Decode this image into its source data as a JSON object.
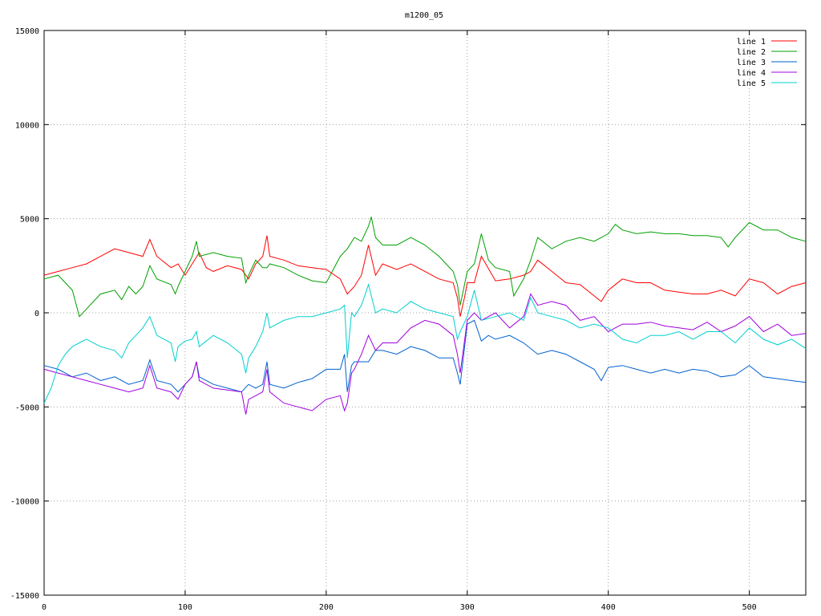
{
  "chart_data": {
    "type": "line",
    "title": "m1200_05",
    "xlabel": "",
    "ylabel": "",
    "xlim": [
      0,
      540
    ],
    "ylim": [
      -15000,
      15000
    ],
    "x_ticks": [
      0,
      100,
      200,
      300,
      400,
      500
    ],
    "y_ticks": [
      -15000,
      -10000,
      -5000,
      0,
      5000,
      10000,
      15000
    ],
    "grid": true,
    "legend_position": "top-right",
    "series": [
      {
        "name": "line 1",
        "color": "#ff0000",
        "x": [
          0,
          10,
          20,
          30,
          40,
          50,
          60,
          70,
          75,
          80,
          90,
          95,
          100,
          105,
          110,
          115,
          120,
          130,
          140,
          145,
          150,
          155,
          158,
          160,
          170,
          180,
          190,
          200,
          210,
          215,
          220,
          225,
          230,
          235,
          240,
          250,
          260,
          270,
          280,
          290,
          293,
          295,
          298,
          300,
          305,
          310,
          320,
          330,
          340,
          345,
          350,
          360,
          370,
          380,
          390,
          395,
          400,
          410,
          420,
          430,
          440,
          450,
          460,
          470,
          480,
          490,
          500,
          510,
          520,
          530,
          540
        ],
        "values": [
          2000,
          2200,
          2400,
          2600,
          3000,
          3400,
          3200,
          3000,
          3900,
          3000,
          2400,
          2600,
          2000,
          2600,
          3200,
          2400,
          2200,
          2500,
          2300,
          1800,
          2600,
          3000,
          4100,
          3000,
          2800,
          2500,
          2400,
          2300,
          1800,
          1000,
          1400,
          2000,
          3600,
          2000,
          2600,
          2300,
          2600,
          2200,
          1800,
          1600,
          800,
          -200,
          800,
          1600,
          1600,
          3000,
          1700,
          1800,
          2000,
          2200,
          2800,
          2200,
          1600,
          1500,
          900,
          600,
          1200,
          1800,
          1600,
          1600,
          1200,
          1100,
          1000,
          1000,
          1200,
          900,
          1800,
          1600,
          1000,
          1400,
          1600
        ]
      },
      {
        "name": "line 2",
        "color": "#00a000",
        "x": [
          0,
          10,
          20,
          25,
          30,
          40,
          50,
          55,
          60,
          65,
          70,
          75,
          80,
          90,
          93,
          95,
          100,
          105,
          108,
          110,
          120,
          130,
          140,
          143,
          145,
          150,
          155,
          158,
          160,
          170,
          180,
          190,
          200,
          210,
          215,
          220,
          225,
          230,
          232,
          235,
          240,
          250,
          260,
          270,
          280,
          290,
          293,
          295,
          300,
          305,
          310,
          315,
          320,
          330,
          333,
          340,
          345,
          350,
          360,
          370,
          380,
          390,
          400,
          405,
          410,
          420,
          430,
          440,
          450,
          460,
          470,
          480,
          485,
          490,
          500,
          510,
          520,
          530,
          540
        ],
        "values": [
          1800,
          2000,
          1200,
          -200,
          200,
          1000,
          1200,
          700,
          1400,
          1000,
          1400,
          2500,
          1800,
          1500,
          1000,
          1400,
          2200,
          3000,
          3800,
          3000,
          3200,
          3000,
          2900,
          1600,
          2000,
          2800,
          2400,
          2400,
          2600,
          2400,
          2000,
          1700,
          1600,
          3000,
          3400,
          4000,
          3800,
          4600,
          5100,
          4000,
          3600,
          3600,
          4000,
          3600,
          3000,
          2200,
          1500,
          400,
          2200,
          2600,
          4200,
          2800,
          2400,
          2200,
          900,
          1800,
          2800,
          4000,
          3400,
          3800,
          4000,
          3800,
          4200,
          4700,
          4400,
          4200,
          4300,
          4200,
          4200,
          4100,
          4100,
          4000,
          3500,
          4000,
          4800,
          4400,
          4400,
          4000,
          3800
        ]
      },
      {
        "name": "line 3",
        "color": "#0060d0",
        "x": [
          0,
          10,
          20,
          30,
          40,
          50,
          60,
          70,
          75,
          80,
          90,
          95,
          100,
          105,
          108,
          110,
          120,
          130,
          140,
          145,
          150,
          155,
          158,
          160,
          170,
          180,
          190,
          200,
          210,
          213,
          215,
          218,
          220,
          225,
          230,
          235,
          240,
          250,
          260,
          270,
          280,
          290,
          293,
          295,
          300,
          305,
          310,
          315,
          320,
          330,
          340,
          350,
          360,
          370,
          380,
          390,
          395,
          400,
          410,
          420,
          430,
          440,
          450,
          460,
          470,
          480,
          490,
          500,
          510,
          520,
          530,
          540
        ],
        "values": [
          -2800,
          -3000,
          -3400,
          -3200,
          -3600,
          -3400,
          -3800,
          -3600,
          -2500,
          -3600,
          -3800,
          -4200,
          -3800,
          -3400,
          -2600,
          -3400,
          -3800,
          -4000,
          -4200,
          -3800,
          -4000,
          -3800,
          -2600,
          -3800,
          -4000,
          -3700,
          -3500,
          -3000,
          -3000,
          -2200,
          -4200,
          -2800,
          -2600,
          -2600,
          -2600,
          -2000,
          -2000,
          -2200,
          -1800,
          -2000,
          -2400,
          -2400,
          -3200,
          -3800,
          -600,
          -400,
          -1500,
          -1200,
          -1400,
          -1200,
          -1600,
          -2200,
          -2000,
          -2200,
          -2600,
          -3000,
          -3600,
          -2900,
          -2800,
          -3000,
          -3200,
          -3000,
          -3200,
          -3000,
          -3100,
          -3400,
          -3300,
          -2800,
          -3400,
          -3500,
          -3600,
          -3700
        ]
      },
      {
        "name": "line 4",
        "color": "#a000e0",
        "x": [
          0,
          10,
          20,
          30,
          40,
          50,
          60,
          70,
          75,
          80,
          90,
          95,
          100,
          105,
          108,
          110,
          120,
          130,
          140,
          143,
          145,
          150,
          155,
          158,
          160,
          170,
          180,
          190,
          200,
          210,
          213,
          215,
          218,
          220,
          225,
          230,
          235,
          240,
          250,
          260,
          270,
          280,
          290,
          293,
          295,
          300,
          305,
          310,
          320,
          330,
          340,
          345,
          350,
          360,
          370,
          380,
          390,
          400,
          410,
          420,
          430,
          440,
          450,
          460,
          470,
          480,
          490,
          500,
          510,
          520,
          530,
          540
        ],
        "values": [
          -3000,
          -3200,
          -3400,
          -3600,
          -3800,
          -4000,
          -4200,
          -4000,
          -2800,
          -4000,
          -4200,
          -4600,
          -3800,
          -3400,
          -2600,
          -3600,
          -4000,
          -4100,
          -4200,
          -5400,
          -4600,
          -4400,
          -4200,
          -3000,
          -4200,
          -4800,
          -5000,
          -5200,
          -4600,
          -4400,
          -5200,
          -4800,
          -3200,
          -3000,
          -2200,
          -1200,
          -2000,
          -1600,
          -1600,
          -800,
          -400,
          -600,
          -1200,
          -2200,
          -3200,
          -400,
          0,
          -400,
          0,
          -800,
          -200,
          1000,
          400,
          600,
          400,
          -400,
          -200,
          -1000,
          -600,
          -600,
          -500,
          -700,
          -800,
          -900,
          -500,
          -1000,
          -700,
          -200,
          -1000,
          -600,
          -1200,
          -1100
        ]
      },
      {
        "name": "line 5",
        "color": "#00d0d0",
        "x": [
          0,
          5,
          10,
          15,
          20,
          25,
          30,
          40,
          50,
          55,
          60,
          65,
          70,
          75,
          80,
          90,
          93,
          95,
          100,
          105,
          108,
          110,
          120,
          130,
          140,
          143,
          145,
          150,
          155,
          158,
          160,
          170,
          180,
          190,
          200,
          210,
          213,
          215,
          218,
          220,
          225,
          230,
          235,
          240,
          250,
          260,
          270,
          280,
          290,
          293,
          295,
          300,
          305,
          310,
          320,
          330,
          340,
          345,
          350,
          360,
          370,
          380,
          390,
          400,
          410,
          420,
          430,
          440,
          450,
          460,
          470,
          480,
          490,
          500,
          510,
          520,
          530,
          540
        ],
        "values": [
          -4800,
          -4000,
          -2800,
          -2200,
          -1800,
          -1600,
          -1400,
          -1800,
          -2000,
          -2400,
          -1600,
          -1200,
          -800,
          -200,
          -1200,
          -1600,
          -2600,
          -1800,
          -1500,
          -1400,
          -1000,
          -1800,
          -1200,
          -1600,
          -2200,
          -3200,
          -2400,
          -1800,
          -1000,
          0,
          -800,
          -400,
          -200,
          -200,
          0,
          200,
          400,
          -2400,
          0,
          -200,
          400,
          1500,
          0,
          200,
          0,
          600,
          200,
          0,
          -200,
          -1400,
          -1000,
          -200,
          1200,
          -400,
          -200,
          0,
          -400,
          800,
          0,
          -200,
          -400,
          -800,
          -600,
          -800,
          -1400,
          -1600,
          -1200,
          -1200,
          -1000,
          -1400,
          -1000,
          -1000,
          -1600,
          -800,
          -1400,
          -1700,
          -1400,
          -1900
        ]
      }
    ]
  }
}
